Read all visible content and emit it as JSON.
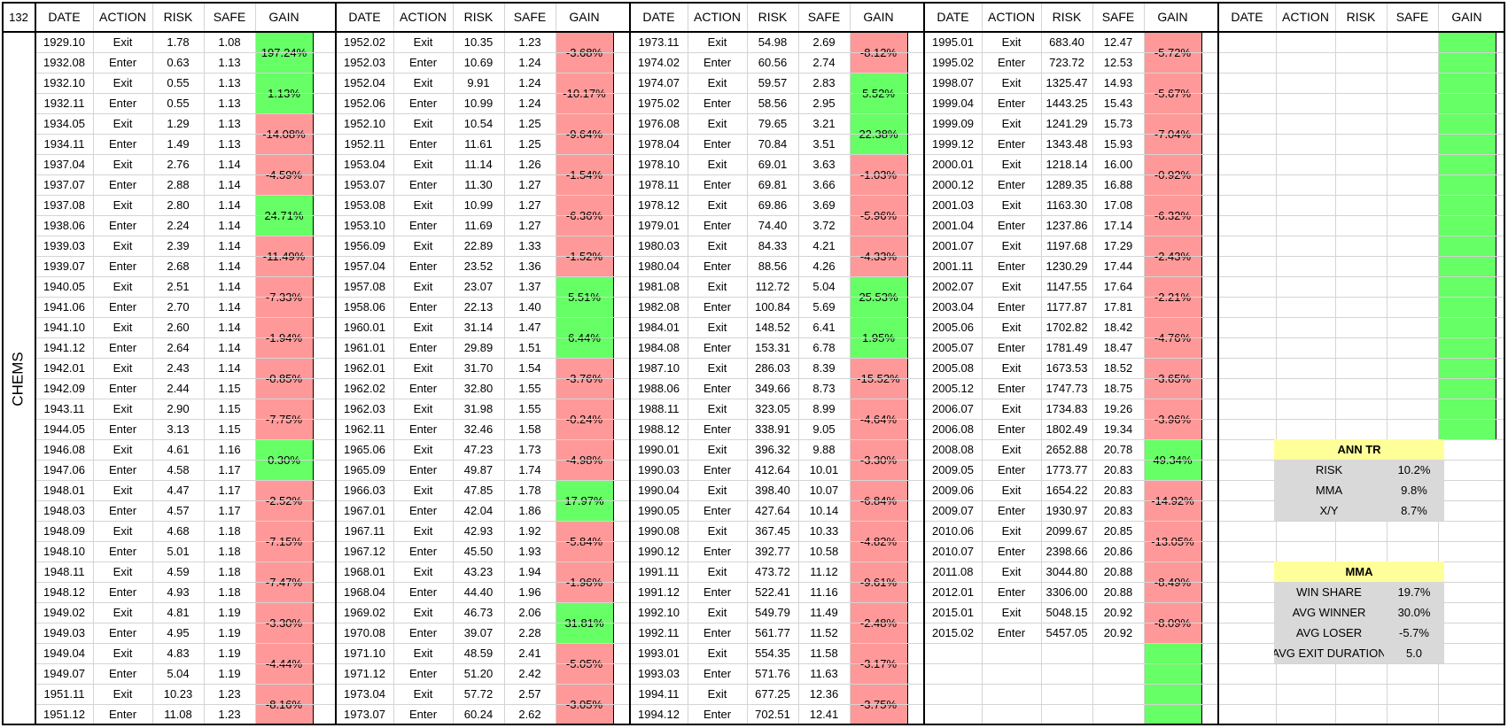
{
  "corner_label": "132",
  "sector_label": "CHEMS",
  "headers": [
    "DATE",
    "ACTION",
    "RISK",
    "SAFE",
    "GAIN"
  ],
  "blocks": [
    {
      "rows": [
        [
          "1929.10",
          "Exit",
          "1.78",
          "1.08"
        ],
        [
          "1932.08",
          "Enter",
          "0.63",
          "1.13"
        ],
        [
          "1932.10",
          "Exit",
          "0.55",
          "1.13"
        ],
        [
          "1932.11",
          "Enter",
          "0.55",
          "1.13"
        ],
        [
          "1934.05",
          "Exit",
          "1.29",
          "1.13"
        ],
        [
          "1934.11",
          "Enter",
          "1.49",
          "1.13"
        ],
        [
          "1937.04",
          "Exit",
          "2.76",
          "1.14"
        ],
        [
          "1937.07",
          "Enter",
          "2.88",
          "1.14"
        ],
        [
          "1937.08",
          "Exit",
          "2.80",
          "1.14"
        ],
        [
          "1938.06",
          "Enter",
          "2.24",
          "1.14"
        ],
        [
          "1939.03",
          "Exit",
          "2.39",
          "1.14"
        ],
        [
          "1939.07",
          "Enter",
          "2.68",
          "1.14"
        ],
        [
          "1940.05",
          "Exit",
          "2.51",
          "1.14"
        ],
        [
          "1941.06",
          "Enter",
          "2.70",
          "1.14"
        ],
        [
          "1941.10",
          "Exit",
          "2.60",
          "1.14"
        ],
        [
          "1941.12",
          "Enter",
          "2.64",
          "1.14"
        ],
        [
          "1942.01",
          "Exit",
          "2.43",
          "1.14"
        ],
        [
          "1942.09",
          "Enter",
          "2.44",
          "1.15"
        ],
        [
          "1943.11",
          "Exit",
          "2.90",
          "1.15"
        ],
        [
          "1944.05",
          "Enter",
          "3.13",
          "1.15"
        ],
        [
          "1946.08",
          "Exit",
          "4.61",
          "1.16"
        ],
        [
          "1947.06",
          "Enter",
          "4.58",
          "1.17"
        ],
        [
          "1948.01",
          "Exit",
          "4.47",
          "1.17"
        ],
        [
          "1948.03",
          "Enter",
          "4.57",
          "1.17"
        ],
        [
          "1948.09",
          "Exit",
          "4.68",
          "1.18"
        ],
        [
          "1948.10",
          "Enter",
          "5.01",
          "1.18"
        ],
        [
          "1948.11",
          "Exit",
          "4.59",
          "1.18"
        ],
        [
          "1948.12",
          "Enter",
          "4.93",
          "1.18"
        ],
        [
          "1949.02",
          "Exit",
          "4.81",
          "1.19"
        ],
        [
          "1949.03",
          "Enter",
          "4.95",
          "1.19"
        ],
        [
          "1949.04",
          "Exit",
          "4.83",
          "1.19"
        ],
        [
          "1949.07",
          "Enter",
          "5.04",
          "1.19"
        ],
        [
          "1951.11",
          "Exit",
          "10.23",
          "1.23"
        ],
        [
          "1951.12",
          "Enter",
          "11.08",
          "1.23"
        ]
      ],
      "gains": [
        "197.24%",
        "1.13%",
        "-14.08%",
        "-4.59%",
        "24.71%",
        "-11.49%",
        "-7.33%",
        "-1.94%",
        "-0.85%",
        "-7.75%",
        "0.30%",
        "-2.52%",
        "-7.15%",
        "-7.47%",
        "-3.30%",
        "-4.44%",
        "-8.16%"
      ],
      "gain_colors": [
        "pos",
        "pos",
        "neg",
        "neg",
        "pos",
        "neg",
        "neg",
        "neg",
        "neg",
        "neg",
        "pos",
        "neg",
        "neg",
        "neg",
        "neg",
        "neg",
        "neg"
      ]
    },
    {
      "rows": [
        [
          "1952.02",
          "Exit",
          "10.35",
          "1.23"
        ],
        [
          "1952.03",
          "Enter",
          "10.69",
          "1.24"
        ],
        [
          "1952.04",
          "Exit",
          "9.91",
          "1.24"
        ],
        [
          "1952.06",
          "Enter",
          "10.99",
          "1.24"
        ],
        [
          "1952.10",
          "Exit",
          "10.54",
          "1.25"
        ],
        [
          "1952.11",
          "Enter",
          "11.61",
          "1.25"
        ],
        [
          "1953.04",
          "Exit",
          "11.14",
          "1.26"
        ],
        [
          "1953.07",
          "Enter",
          "11.30",
          "1.27"
        ],
        [
          "1953.08",
          "Exit",
          "10.99",
          "1.27"
        ],
        [
          "1953.10",
          "Enter",
          "11.69",
          "1.27"
        ],
        [
          "1956.09",
          "Exit",
          "22.89",
          "1.33"
        ],
        [
          "1957.04",
          "Enter",
          "23.52",
          "1.36"
        ],
        [
          "1957.08",
          "Exit",
          "23.07",
          "1.37"
        ],
        [
          "1958.06",
          "Enter",
          "22.13",
          "1.40"
        ],
        [
          "1960.01",
          "Exit",
          "31.14",
          "1.47"
        ],
        [
          "1961.01",
          "Enter",
          "29.89",
          "1.51"
        ],
        [
          "1962.01",
          "Exit",
          "31.70",
          "1.54"
        ],
        [
          "1962.02",
          "Enter",
          "32.80",
          "1.55"
        ],
        [
          "1962.03",
          "Exit",
          "31.98",
          "1.55"
        ],
        [
          "1962.11",
          "Enter",
          "32.46",
          "1.58"
        ],
        [
          "1965.06",
          "Exit",
          "47.23",
          "1.73"
        ],
        [
          "1965.09",
          "Enter",
          "49.87",
          "1.74"
        ],
        [
          "1966.03",
          "Exit",
          "47.85",
          "1.78"
        ],
        [
          "1967.01",
          "Enter",
          "42.04",
          "1.86"
        ],
        [
          "1967.11",
          "Exit",
          "42.93",
          "1.92"
        ],
        [
          "1967.12",
          "Enter",
          "45.50",
          "1.93"
        ],
        [
          "1968.01",
          "Exit",
          "43.23",
          "1.94"
        ],
        [
          "1968.04",
          "Enter",
          "44.40",
          "1.96"
        ],
        [
          "1969.02",
          "Exit",
          "46.73",
          "2.06"
        ],
        [
          "1970.08",
          "Enter",
          "39.07",
          "2.28"
        ],
        [
          "1971.10",
          "Exit",
          "48.59",
          "2.41"
        ],
        [
          "1971.12",
          "Enter",
          "51.20",
          "2.42"
        ],
        [
          "1973.04",
          "Exit",
          "57.72",
          "2.57"
        ],
        [
          "1973.07",
          "Enter",
          "60.24",
          "2.62"
        ]
      ],
      "gains": [
        "-3.68%",
        "-10.17%",
        "-9.64%",
        "-1.54%",
        "-6.36%",
        "-1.52%",
        "5.51%",
        "6.44%",
        "-3.76%",
        "-0.24%",
        "-4.98%",
        "17.97%",
        "-5.84%",
        "-1.96%",
        "31.81%",
        "-5.05%",
        "-3.05%"
      ],
      "gain_colors": [
        "neg",
        "neg",
        "neg",
        "neg",
        "neg",
        "neg",
        "pos",
        "pos",
        "neg",
        "neg",
        "neg",
        "pos",
        "neg",
        "neg",
        "pos",
        "neg",
        "neg"
      ]
    },
    {
      "rows": [
        [
          "1973.11",
          "Exit",
          "54.98",
          "2.69"
        ],
        [
          "1974.02",
          "Enter",
          "60.56",
          "2.74"
        ],
        [
          "1974.07",
          "Exit",
          "59.57",
          "2.83"
        ],
        [
          "1975.02",
          "Enter",
          "58.56",
          "2.95"
        ],
        [
          "1976.08",
          "Exit",
          "79.65",
          "3.21"
        ],
        [
          "1978.04",
          "Enter",
          "70.84",
          "3.51"
        ],
        [
          "1978.10",
          "Exit",
          "69.01",
          "3.63"
        ],
        [
          "1978.11",
          "Enter",
          "69.81",
          "3.66"
        ],
        [
          "1978.12",
          "Exit",
          "69.86",
          "3.69"
        ],
        [
          "1979.01",
          "Enter",
          "74.40",
          "3.72"
        ],
        [
          "1980.03",
          "Exit",
          "84.33",
          "4.21"
        ],
        [
          "1980.04",
          "Enter",
          "88.56",
          "4.26"
        ],
        [
          "1981.08",
          "Exit",
          "112.72",
          "5.04"
        ],
        [
          "1982.08",
          "Enter",
          "100.84",
          "5.69"
        ],
        [
          "1984.01",
          "Exit",
          "148.52",
          "6.41"
        ],
        [
          "1984.08",
          "Enter",
          "153.31",
          "6.78"
        ],
        [
          "1987.10",
          "Exit",
          "286.03",
          "8.39"
        ],
        [
          "1988.06",
          "Enter",
          "349.66",
          "8.73"
        ],
        [
          "1988.11",
          "Exit",
          "323.05",
          "8.99"
        ],
        [
          "1988.12",
          "Enter",
          "338.91",
          "9.05"
        ],
        [
          "1990.01",
          "Exit",
          "396.32",
          "9.88"
        ],
        [
          "1990.03",
          "Enter",
          "412.64",
          "10.01"
        ],
        [
          "1990.04",
          "Exit",
          "398.40",
          "10.07"
        ],
        [
          "1990.05",
          "Enter",
          "427.64",
          "10.14"
        ],
        [
          "1990.08",
          "Exit",
          "367.45",
          "10.33"
        ],
        [
          "1990.12",
          "Enter",
          "392.77",
          "10.58"
        ],
        [
          "1991.11",
          "Exit",
          "473.72",
          "11.12"
        ],
        [
          "1991.12",
          "Enter",
          "522.41",
          "11.16"
        ],
        [
          "1992.10",
          "Exit",
          "549.79",
          "11.49"
        ],
        [
          "1992.11",
          "Enter",
          "561.77",
          "11.52"
        ],
        [
          "1993.01",
          "Exit",
          "554.35",
          "11.58"
        ],
        [
          "1993.03",
          "Enter",
          "571.76",
          "11.63"
        ],
        [
          "1994.11",
          "Exit",
          "677.25",
          "12.36"
        ],
        [
          "1994.12",
          "Enter",
          "702.51",
          "12.41"
        ]
      ],
      "gains": [
        "-8.12%",
        "5.52%",
        "22.38%",
        "-1.03%",
        "-5.96%",
        "-4.33%",
        "25.53%",
        "1.95%",
        "-15.52%",
        "-4.64%",
        "-3.30%",
        "-6.84%",
        "-4.82%",
        "-9.61%",
        "-2.48%",
        "-3.17%",
        "-3.75%"
      ],
      "gain_colors": [
        "neg",
        "pos",
        "pos",
        "neg",
        "neg",
        "neg",
        "pos",
        "pos",
        "neg",
        "neg",
        "neg",
        "neg",
        "neg",
        "neg",
        "neg",
        "neg",
        "neg"
      ]
    },
    {
      "rows": [
        [
          "1995.01",
          "Exit",
          "683.40",
          "12.47"
        ],
        [
          "1995.02",
          "Enter",
          "723.72",
          "12.53"
        ],
        [
          "1998.07",
          "Exit",
          "1325.47",
          "14.93"
        ],
        [
          "1999.04",
          "Enter",
          "1443.25",
          "15.43"
        ],
        [
          "1999.09",
          "Exit",
          "1241.29",
          "15.73"
        ],
        [
          "1999.12",
          "Enter",
          "1343.48",
          "15.93"
        ],
        [
          "2000.01",
          "Exit",
          "1218.14",
          "16.00"
        ],
        [
          "2000.12",
          "Enter",
          "1289.35",
          "16.88"
        ],
        [
          "2001.03",
          "Exit",
          "1163.30",
          "17.08"
        ],
        [
          "2001.04",
          "Enter",
          "1237.86",
          "17.14"
        ],
        [
          "2001.07",
          "Exit",
          "1197.68",
          "17.29"
        ],
        [
          "2001.11",
          "Enter",
          "1230.29",
          "17.44"
        ],
        [
          "2002.07",
          "Exit",
          "1147.55",
          "17.64"
        ],
        [
          "2003.04",
          "Enter",
          "1177.87",
          "17.81"
        ],
        [
          "2005.06",
          "Exit",
          "1702.82",
          "18.42"
        ],
        [
          "2005.07",
          "Enter",
          "1781.49",
          "18.47"
        ],
        [
          "2005.08",
          "Exit",
          "1673.53",
          "18.52"
        ],
        [
          "2005.12",
          "Enter",
          "1747.73",
          "18.75"
        ],
        [
          "2006.07",
          "Exit",
          "1734.83",
          "19.26"
        ],
        [
          "2006.08",
          "Enter",
          "1802.49",
          "19.34"
        ],
        [
          "2008.08",
          "Exit",
          "2652.88",
          "20.78"
        ],
        [
          "2009.05",
          "Enter",
          "1773.77",
          "20.83"
        ],
        [
          "2009.06",
          "Exit",
          "1654.22",
          "20.83"
        ],
        [
          "2009.07",
          "Enter",
          "1930.97",
          "20.83"
        ],
        [
          "2010.06",
          "Exit",
          "2099.67",
          "20.85"
        ],
        [
          "2010.07",
          "Enter",
          "2398.66",
          "20.86"
        ],
        [
          "2011.08",
          "Exit",
          "3044.80",
          "20.88"
        ],
        [
          "2012.01",
          "Enter",
          "3306.00",
          "20.88"
        ],
        [
          "2015.01",
          "Exit",
          "5048.15",
          "20.92"
        ],
        [
          "2015.02",
          "Enter",
          "5457.05",
          "20.92"
        ],
        [
          "",
          "",
          "",
          ""
        ],
        [
          "",
          "",
          "",
          ""
        ],
        [
          "",
          "",
          "",
          ""
        ],
        [
          "",
          "",
          "",
          ""
        ]
      ],
      "gains": [
        "-5.72%",
        "-5.67%",
        "-7.04%",
        "-0.92%",
        "-6.32%",
        "-2.43%",
        "-2.21%",
        "-4.76%",
        "-3.65%",
        "-3.96%",
        "49.34%",
        "-14.92%",
        "-13.05%",
        "-8.49%",
        "-8.09%",
        "",
        ""
      ],
      "gain_colors": [
        "neg",
        "neg",
        "neg",
        "neg",
        "neg",
        "neg",
        "neg",
        "neg",
        "neg",
        "neg",
        "pos",
        "neg",
        "neg",
        "neg",
        "neg",
        "pos",
        "pos"
      ]
    },
    {
      "rows": [],
      "gains": [
        "",
        "",
        "",
        "",
        "",
        "",
        "",
        "",
        "",
        "",
        "",
        "",
        "",
        "",
        "",
        "",
        ""
      ],
      "gain_colors": [
        "pos",
        "pos",
        "pos",
        "pos",
        "pos",
        "pos",
        "pos",
        "pos",
        "pos",
        "pos",
        "none",
        "none",
        "none",
        "none",
        "none",
        "none",
        "none"
      ]
    }
  ],
  "stats": {
    "ann_tr": {
      "title": "ANN TR",
      "rows": [
        [
          "RISK",
          "10.2%"
        ],
        [
          "MMA",
          "9.8%"
        ],
        [
          "X/Y",
          "8.7%"
        ]
      ]
    },
    "mma": {
      "title": "MMA",
      "rows": [
        [
          "WIN SHARE",
          "19.7%"
        ],
        [
          "AVG WINNER",
          "30.0%"
        ],
        [
          "AVG LOSER",
          "-5.7%"
        ],
        [
          "AVG EXIT DURATION",
          "5.0"
        ]
      ]
    }
  }
}
